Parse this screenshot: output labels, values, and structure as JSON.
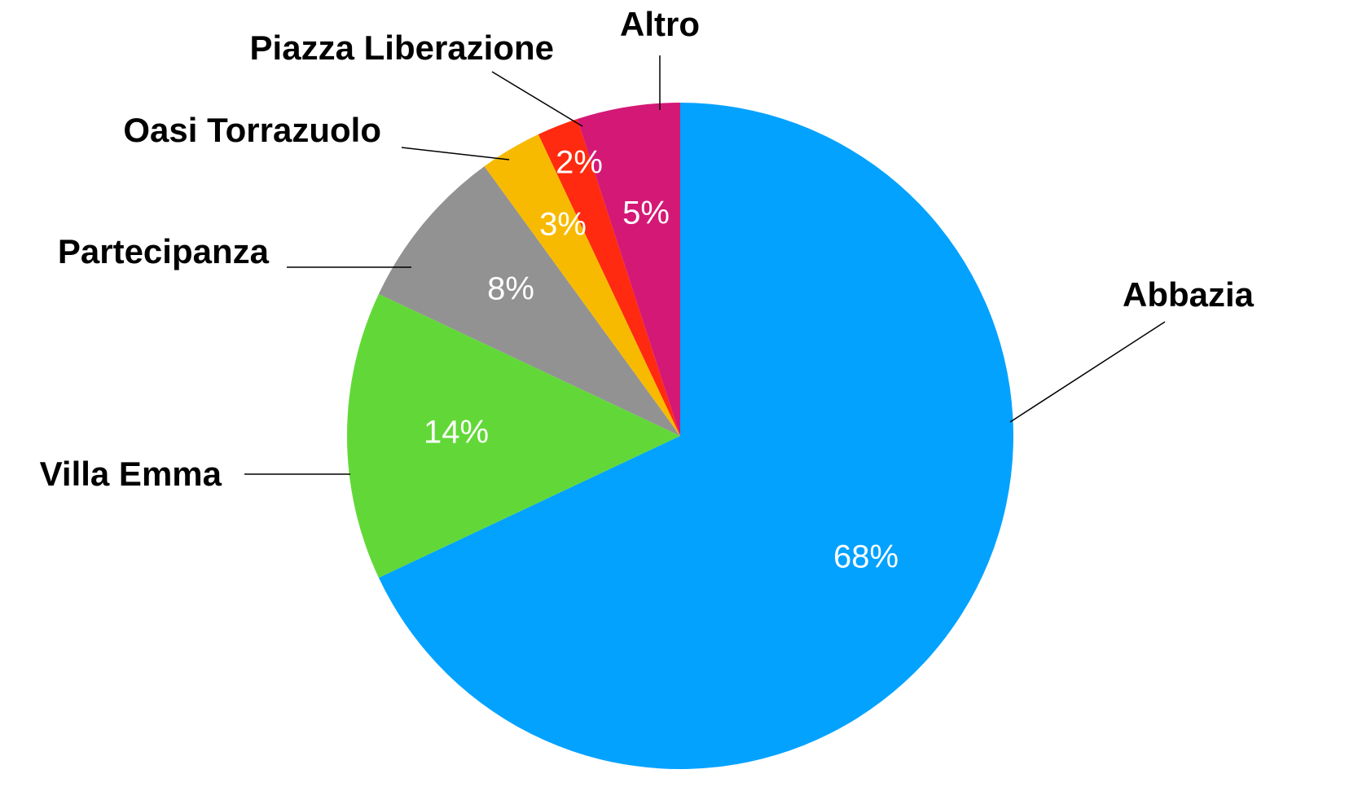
{
  "chart_data": {
    "type": "pie",
    "categories": [
      "Abbazia",
      "Villa Emma",
      "Partecipanza",
      "Oasi Torrazuolo",
      "Piazza Liberazione",
      "Altro"
    ],
    "values": [
      68,
      14,
      8,
      3,
      2,
      5
    ],
    "value_labels": [
      "68%",
      "14%",
      "8%",
      "3%",
      "2%",
      "5%"
    ],
    "colors": [
      "#03a2ff",
      "#62d838",
      "#929292",
      "#f8ba00",
      "#ff2a0f",
      "#d41876"
    ]
  }
}
